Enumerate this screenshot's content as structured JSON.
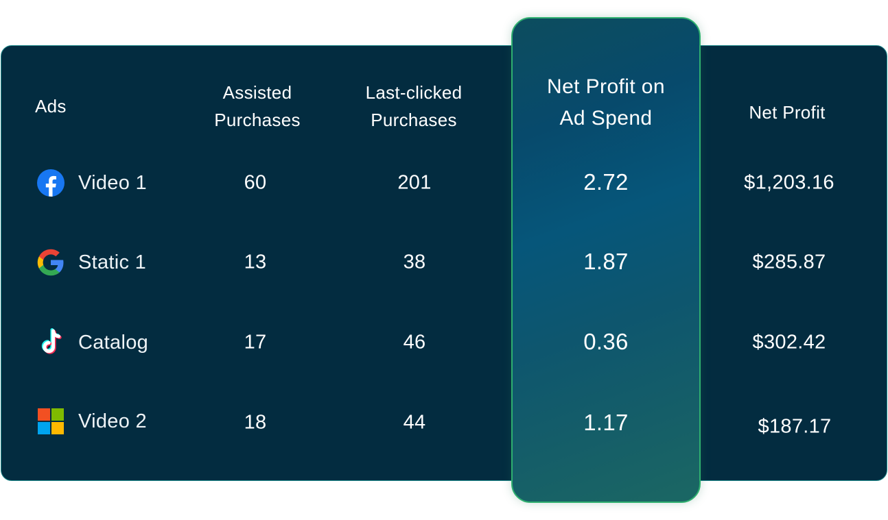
{
  "headers": {
    "ads": "Ads",
    "assisted_line1": "Assisted",
    "assisted_line2": "Purchases",
    "last_clicked_line1": "Last-clicked",
    "last_clicked_line2": "Purchases",
    "npoas_line1": "Net Profit on",
    "npoas_line2": "Ad Spend",
    "net_profit": "Net Profit"
  },
  "rows": [
    {
      "icon": "facebook-icon",
      "ad": "Video 1",
      "assisted": "60",
      "last_clicked": "201",
      "npoas": "2.72",
      "net_profit": "$1,203.16"
    },
    {
      "icon": "google-icon",
      "ad": "Static 1",
      "assisted": "13",
      "last_clicked": "38",
      "npoas": "1.87",
      "net_profit": "$285.87"
    },
    {
      "icon": "tiktok-icon",
      "ad": "Catalog",
      "assisted": "17",
      "last_clicked": "46",
      "npoas": "0.36",
      "net_profit": "$302.42"
    },
    {
      "icon": "microsoft-icon",
      "ad": "Video 2",
      "assisted": "18",
      "last_clicked": "44",
      "npoas": "1.17",
      "net_profit": "$187.17"
    }
  ],
  "colors": {
    "card_background": "#032c40",
    "card_border": "#1e8a8c",
    "highlight_border": "#2fb06f",
    "text": "#ffffff"
  }
}
